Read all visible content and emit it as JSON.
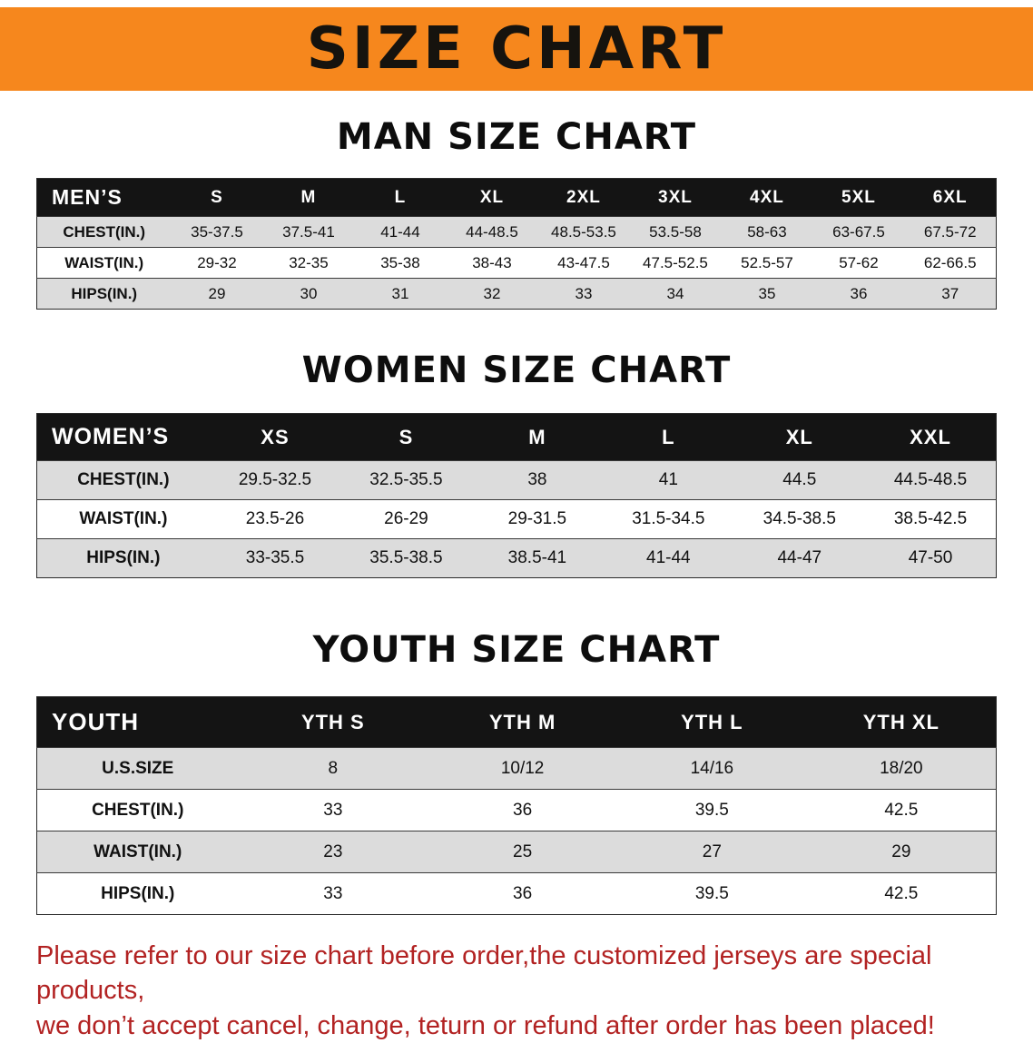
{
  "banner": {
    "title": "SIZE CHART"
  },
  "sections": [
    {
      "id": "men",
      "heading": "MAN SIZE CHART",
      "header": [
        "MEN’S",
        "S",
        "M",
        "L",
        "XL",
        "2XL",
        "3XL",
        "4XL",
        "5XL",
        "6XL"
      ],
      "rows": [
        [
          "CHEST(IN.)",
          "35-37.5",
          "37.5-41",
          "41-44",
          "44-48.5",
          "48.5-53.5",
          "53.5-58",
          "58-63",
          "63-67.5",
          "67.5-72"
        ],
        [
          "WAIST(IN.)",
          "29-32",
          "32-35",
          "35-38",
          "38-43",
          "43-47.5",
          "47.5-52.5",
          "52.5-57",
          "57-62",
          "62-66.5"
        ],
        [
          "HIPS(IN.)",
          "29",
          "30",
          "31",
          "32",
          "33",
          "34",
          "35",
          "36",
          "37"
        ]
      ]
    },
    {
      "id": "women",
      "heading": "WOMEN SIZE CHART",
      "header": [
        "WOMEN’S",
        "XS",
        "S",
        "M",
        "L",
        "XL",
        "XXL"
      ],
      "rows": [
        [
          "CHEST(IN.)",
          "29.5-32.5",
          "32.5-35.5",
          "38",
          "41",
          "44.5",
          "44.5-48.5"
        ],
        [
          "WAIST(IN.)",
          "23.5-26",
          "26-29",
          "29-31.5",
          "31.5-34.5",
          "34.5-38.5",
          "38.5-42.5"
        ],
        [
          "HIPS(IN.)",
          "33-35.5",
          "35.5-38.5",
          "38.5-41",
          "41-44",
          "44-47",
          "47-50"
        ]
      ]
    },
    {
      "id": "youth",
      "heading": "YOUTH SIZE CHART",
      "header": [
        "YOUTH",
        "YTH S",
        "YTH M",
        "YTH L",
        "YTH XL"
      ],
      "rows": [
        [
          "U.S.SIZE",
          "8",
          "10/12",
          "14/16",
          "18/20"
        ],
        [
          "CHEST(IN.)",
          "33",
          "36",
          "39.5",
          "42.5"
        ],
        [
          "WAIST(IN.)",
          "23",
          "25",
          "27",
          "29"
        ],
        [
          "HIPS(IN.)",
          "33",
          "36",
          "39.5",
          "42.5"
        ]
      ]
    }
  ],
  "disclaimer": {
    "line1": "Please refer to our size chart before order,the customized jerseys are special products,",
    "line2": "we don’t accept cancel, change, teturn or refund after order has been placed!"
  },
  "colors": {
    "banner_bg": "#F6871D",
    "header_bg": "#141414",
    "row_alt_bg": "#DCDCDC",
    "disclaimer_red": "#B22222"
  }
}
